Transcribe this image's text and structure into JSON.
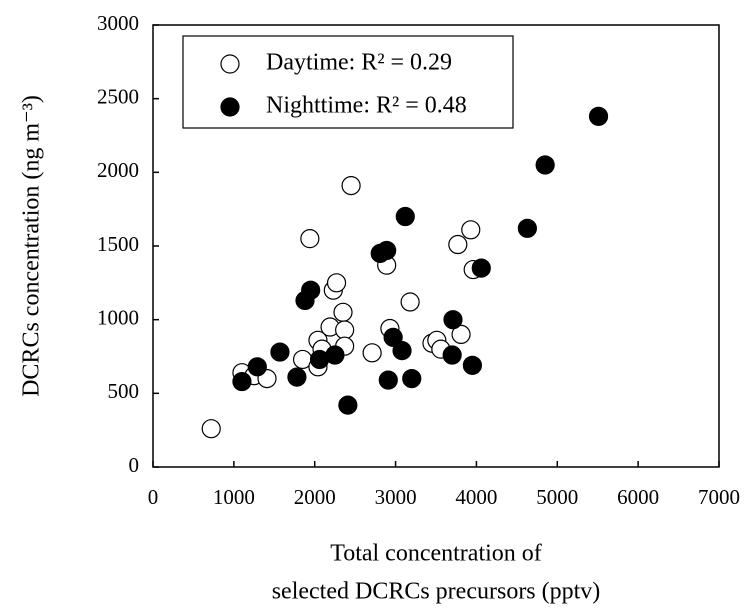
{
  "chart_data": {
    "type": "scatter",
    "xlabel": [
      "Total concentration of",
      "selected DCRCs precursors (pptv)"
    ],
    "ylabel": "DCRCs concentration (ng m⁻³)",
    "xlim": [
      0,
      7000
    ],
    "xticks": [
      0,
      1000,
      2000,
      3000,
      4000,
      5000,
      6000,
      7000
    ],
    "ylim": [
      0,
      3000
    ],
    "yticks": [
      0,
      500,
      1000,
      1500,
      2000,
      2500,
      3000
    ],
    "legend": "upper left",
    "series": [
      {
        "name": "Daytime: R² = 0.29",
        "color": "#ffffff",
        "edge": "#000000",
        "x": [
          720,
          1100,
          1250,
          1410,
          1850,
          1940,
          2040,
          2040,
          2090,
          2190,
          2230,
          2270,
          2350,
          2370,
          2370,
          2450,
          2710,
          2890,
          2930,
          3180,
          3450,
          3510,
          3560,
          3770,
          3810,
          3930,
          3960
        ],
        "values": [
          260,
          640,
          620,
          600,
          730,
          1550,
          860,
          680,
          800,
          950,
          1200,
          1250,
          1050,
          930,
          820,
          1910,
          775,
          1370,
          940,
          1120,
          840,
          860,
          800,
          1510,
          900,
          1610,
          1340
        ]
      },
      {
        "name": "Nighttime: R² = 0.48",
        "color": "#000000",
        "edge": "#000000",
        "x": [
          1100,
          1290,
          1570,
          1780,
          1880,
          1950,
          2060,
          2250,
          2410,
          2810,
          2890,
          3120,
          2970,
          2910,
          3080,
          3200,
          3700,
          3710,
          3950,
          4060,
          4630,
          4850,
          5510
        ],
        "values": [
          580,
          680,
          780,
          610,
          1130,
          1200,
          730,
          760,
          420,
          1450,
          1470,
          1700,
          880,
          590,
          790,
          600,
          760,
          1000,
          690,
          1350,
          1620,
          2050,
          2380
        ]
      }
    ]
  }
}
